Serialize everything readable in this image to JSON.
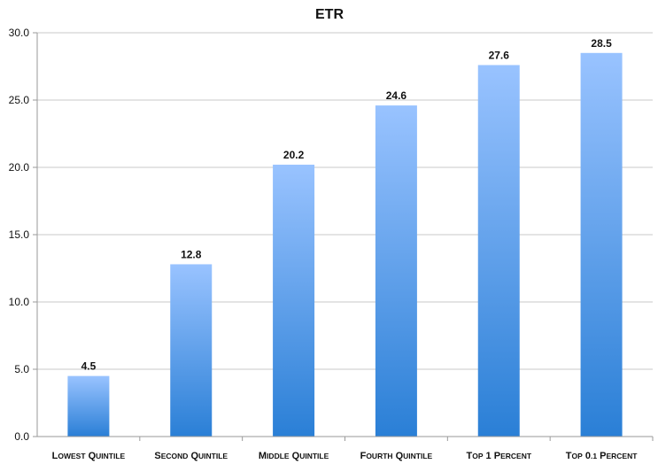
{
  "chart_data": {
    "type": "bar",
    "title": "ETR",
    "categories": [
      "Lowest Quintile",
      "Second Quintile",
      "Middle Quintile",
      "Fourth Quintile",
      "Top 1 Percent",
      "Top 0.1 Percent"
    ],
    "values": [
      4.5,
      12.8,
      20.2,
      24.6,
      27.6,
      28.5
    ],
    "value_labels": [
      "4.5",
      "12.8",
      "20.2",
      "24.6",
      "27.6",
      "28.5"
    ],
    "ylim": [
      0,
      30
    ],
    "yticks": [
      0,
      5,
      10,
      15,
      20,
      25,
      30
    ],
    "ytick_labels": [
      "0.0",
      "5.0",
      "10.0",
      "15.0",
      "20.0",
      "25.0",
      "30.0"
    ],
    "grid": true,
    "legend": "none",
    "colors": {
      "bar_top": "#99c3ff",
      "bar_bottom": "#2a7fd6",
      "grid": "#c8c8c8",
      "axis": "#9a9a9a"
    }
  }
}
